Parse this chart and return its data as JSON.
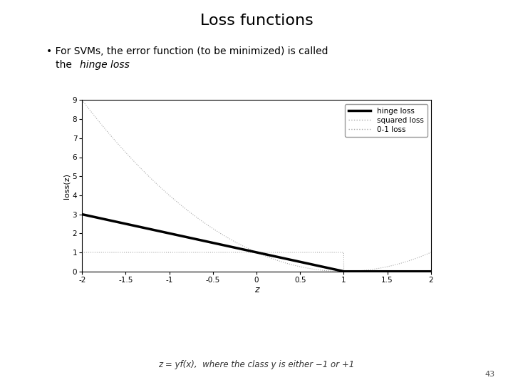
{
  "title": "Loss functions",
  "bullet_line1": "• For SVMs, the error function (to be minimized) is called",
  "bullet_line2": "   the ",
  "bullet_italic": "hinge loss",
  "footer_text": "z = yf(x),  where the class y is either −1 or +1",
  "page_number": "43",
  "xlabel": "z",
  "ylabel": "loss(z)",
  "xlim": [
    -2,
    2
  ],
  "ylim": [
    0,
    9
  ],
  "xticks": [
    -2,
    -1.5,
    -1,
    -0.5,
    0,
    0.5,
    1,
    1.5,
    2
  ],
  "yticks": [
    0,
    1,
    2,
    3,
    4,
    5,
    6,
    7,
    8,
    9
  ],
  "legend_labels": [
    "hinge loss",
    "squared loss",
    "0-1 loss"
  ],
  "hinge_color": "#000000",
  "squared_color": "#aaaaaa",
  "zero_one_color": "#aaaaaa",
  "hinge_linewidth": 2.5,
  "squared_linewidth": 0.8,
  "zero_one_linewidth": 0.8,
  "background_color": "#ffffff"
}
